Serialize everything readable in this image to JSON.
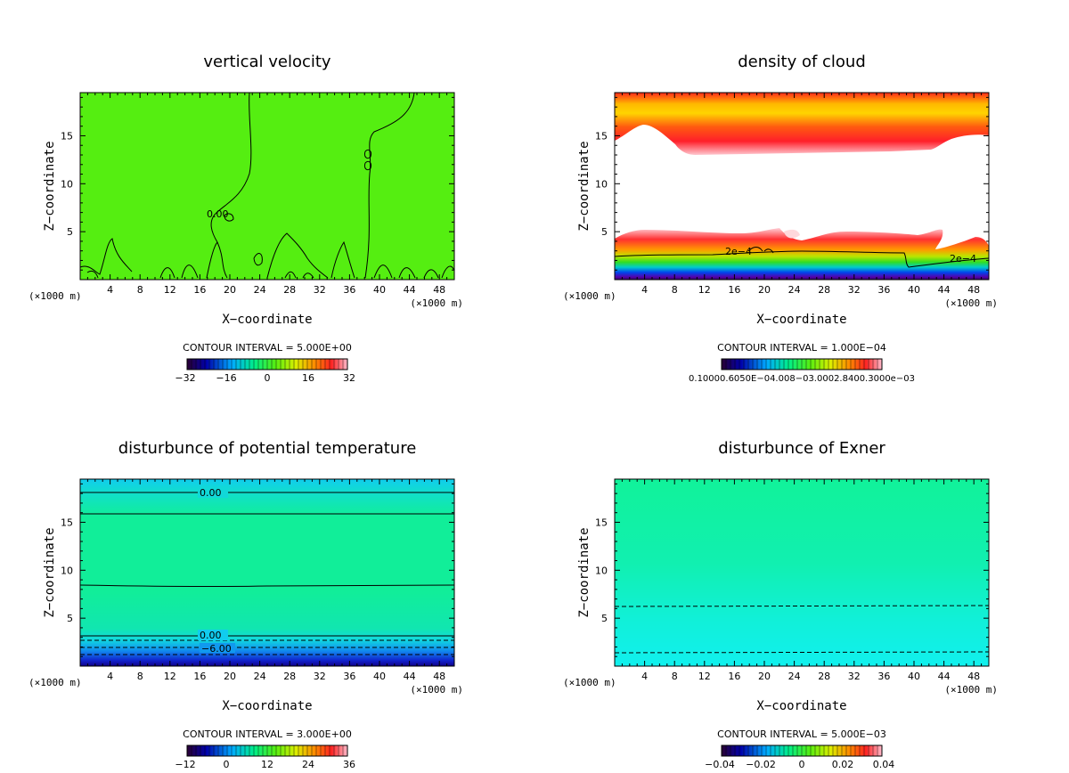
{
  "chart_data": [
    {
      "type": "heatmap",
      "title": "vertical velocity",
      "xlabel": "X−coordinate",
      "ylabel": "Z−coordinate",
      "x_unit": "(×1000 m)",
      "xlim": [
        0,
        50
      ],
      "ylim": [
        0,
        19.5
      ],
      "x_ticks": [
        "4",
        "8",
        "12",
        "16",
        "20",
        "24",
        "28",
        "32",
        "36",
        "40",
        "44",
        "48"
      ],
      "y_ticks": [
        "5",
        "10",
        "15"
      ],
      "contour_interval": "CONTOUR INTERVAL = 5.000E+00",
      "contour_labels": [
        "0.00"
      ],
      "colorbar_labels": [
        "−32",
        "−16",
        "0",
        "16",
        "32"
      ],
      "fill": "#55ee11"
    },
    {
      "type": "heatmap",
      "title": "density of cloud",
      "xlabel": "X−coordinate",
      "ylabel": "Z−coordinate",
      "x_unit": "(×1000 m)",
      "xlim": [
        0,
        50
      ],
      "ylim": [
        0,
        19.5
      ],
      "x_ticks": [
        "4",
        "8",
        "12",
        "16",
        "20",
        "24",
        "28",
        "32",
        "36",
        "40",
        "44",
        "48"
      ],
      "y_ticks": [
        "5",
        "10",
        "15"
      ],
      "contour_interval": "CONTOUR INTERVAL = 1.000E−04",
      "contour_labels": [
        "2e−4",
        "2e−4"
      ],
      "colorbar_labels": [
        "0.10000.6050E−04.008−03.0002.8400.3000e−03"
      ],
      "fill": "#ffffff"
    },
    {
      "type": "heatmap",
      "title": "disturbunce of potential temperature",
      "xlabel": "X−coordinate",
      "ylabel": "Z−coordinate",
      "x_unit": "(×1000 m)",
      "xlim": [
        0,
        50
      ],
      "ylim": [
        0,
        19.5
      ],
      "x_ticks": [
        "4",
        "8",
        "12",
        "16",
        "20",
        "24",
        "28",
        "32",
        "36",
        "40",
        "44",
        "48"
      ],
      "y_ticks": [
        "5",
        "10",
        "15"
      ],
      "contour_interval": "CONTOUR INTERVAL = 3.000E+00",
      "contour_labels": [
        "0.00",
        "0.00",
        "−6.00"
      ],
      "colorbar_labels": [
        "−12",
        "0",
        "12",
        "24",
        "36"
      ],
      "fill": "#11ee88"
    },
    {
      "type": "heatmap",
      "title": "disturbunce of Exner",
      "xlabel": "X−coordinate",
      "ylabel": "Z−coordinate",
      "x_unit": "(×1000 m)",
      "xlim": [
        0,
        50
      ],
      "ylim": [
        0,
        19.5
      ],
      "x_ticks": [
        "4",
        "8",
        "12",
        "16",
        "20",
        "24",
        "28",
        "32",
        "36",
        "40",
        "44",
        "48"
      ],
      "y_ticks": [
        "5",
        "10",
        "15"
      ],
      "contour_interval": "CONTOUR INTERVAL = 5.000E−03",
      "contour_labels": [],
      "colorbar_labels": [
        "−0.04",
        "−0.02",
        "0",
        "0.02",
        "0.04"
      ],
      "fill": "#11f29a"
    }
  ]
}
